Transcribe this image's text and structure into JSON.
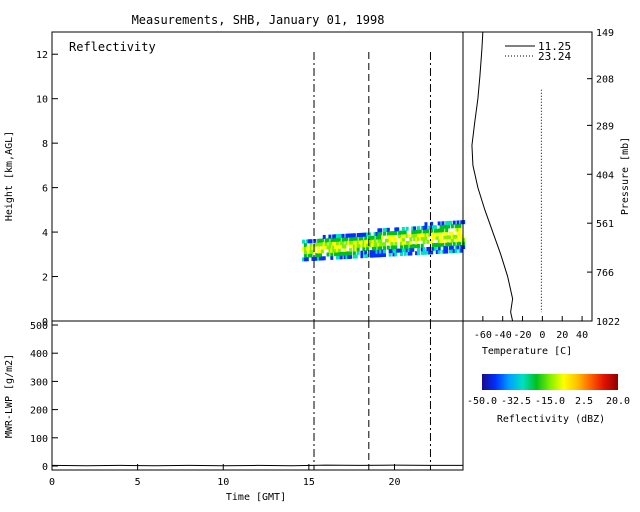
{
  "title": "Measurements, SHB, January 01, 1998",
  "colors": {
    "axis": "#000000",
    "background": "#ffffff"
  },
  "chart_data": [
    {
      "type": "heatmap",
      "panel": "reflectivity",
      "label": "Reflectivity",
      "ylabel": "Height [km,AGL]",
      "xlim": [
        0,
        24
      ],
      "ylim": [
        0,
        13
      ],
      "yticks": [
        0,
        2,
        4,
        6,
        8,
        10,
        12
      ],
      "vertical_lines": [
        {
          "x": 15.3,
          "style": "dash-dot"
        },
        {
          "x": 18.5,
          "style": "dashed"
        },
        {
          "x": 22.1,
          "style": "dash-dot"
        }
      ],
      "cloud_layer": {
        "x_start": 14.6,
        "x_end": 24.0,
        "base_km_start": 2.7,
        "top_km_start": 3.6,
        "base_km_end": 3.1,
        "top_km_end": 4.5
      }
    },
    {
      "type": "line",
      "panel": "temperature-profile",
      "xlabel": "Temperature [C]",
      "xticks": [
        -60,
        -40,
        -20,
        0,
        20,
        40
      ],
      "xtick_labels": [
        "-60",
        "-40",
        "-20",
        "0",
        "20",
        "40"
      ],
      "xlim": [
        -80,
        50
      ],
      "y2label": "Pressure [mb]",
      "pressure_ticks": [
        {
          "label": "149",
          "km": 13.0
        },
        {
          "label": "208",
          "km": 10.9
        },
        {
          "label": "289",
          "km": 8.8
        },
        {
          "label": "404",
          "km": 6.6
        },
        {
          "label": "561",
          "km": 4.4
        },
        {
          "label": "766",
          "km": 2.2
        },
        {
          "label": "1022",
          "km": 0.0
        }
      ],
      "series": [
        {
          "name": "11.25",
          "style": "solid",
          "points": [
            [
              -60,
              13.0
            ],
            [
              -61,
              12.2
            ],
            [
              -63,
              11.0
            ],
            [
              -65,
              10.0
            ],
            [
              -68,
              9.0
            ],
            [
              -71,
              7.9
            ],
            [
              -70,
              7.0
            ],
            [
              -65,
              6.0
            ],
            [
              -58,
              5.0
            ],
            [
              -50,
              4.0
            ],
            [
              -42,
              3.0
            ],
            [
              -35,
              2.0
            ],
            [
              -30,
              1.0
            ],
            [
              -32,
              0.4
            ],
            [
              -30,
              0.0
            ]
          ]
        },
        {
          "name": "23.24",
          "style": "dotted",
          "points": [
            [
              -1,
              10.4
            ],
            [
              -1,
              9.0
            ],
            [
              -1,
              7.0
            ],
            [
              -1,
              5.0
            ],
            [
              -1,
              3.0
            ],
            [
              -1,
              1.5
            ],
            [
              -1,
              0.4
            ]
          ]
        }
      ]
    },
    {
      "type": "line",
      "panel": "lwp",
      "ylabel": "MWR-LWP [g/m2]",
      "xlabel": "Time [GMT]",
      "xlim": [
        0,
        24
      ],
      "ylim": [
        0,
        500
      ],
      "yticks": [
        0,
        100,
        200,
        300,
        400,
        500
      ],
      "xticks": [
        0,
        5,
        10,
        15,
        20
      ],
      "vertical_lines": [
        {
          "x": 15.3,
          "style": "dash-dot"
        },
        {
          "x": 18.5,
          "style": "dashed"
        },
        {
          "x": 22.1,
          "style": "dash-dot"
        }
      ],
      "series": [
        {
          "name": "",
          "style": "solid",
          "x": [
            0,
            2,
            4,
            6,
            8,
            10,
            12,
            14,
            16,
            18,
            20,
            22,
            24
          ],
          "values": [
            2,
            1,
            2,
            1,
            2,
            1,
            2,
            1,
            3,
            2,
            3,
            2,
            2
          ]
        }
      ]
    }
  ],
  "colorbar": {
    "label": "Reflectivity (dBZ)",
    "range": [
      -50,
      20
    ],
    "tick_labels": [
      "-50.0",
      "-32.5",
      "-15.0",
      "2.5",
      "20.0"
    ],
    "stops": [
      "#1a0a8c",
      "#0030ff",
      "#00a0ff",
      "#00e0c0",
      "#00c020",
      "#80f000",
      "#ffff00",
      "#ffc000",
      "#ff6000",
      "#e01000",
      "#8c0000"
    ]
  }
}
